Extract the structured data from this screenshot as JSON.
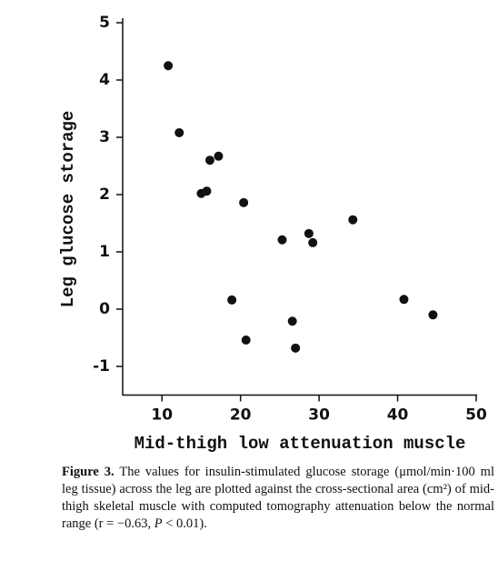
{
  "chart_data": {
    "type": "scatter",
    "x_label": "Mid-thigh low attenuation muscle",
    "y_label": "Leg glucose storage",
    "x": [
      10.8,
      12.2,
      16.1,
      17.2,
      15.0,
      15.7,
      20.4,
      25.3,
      28.7,
      29.2,
      34.3,
      18.9,
      40.8,
      44.5,
      26.6,
      20.7,
      27.0
    ],
    "values": [
      4.25,
      3.08,
      2.6,
      2.67,
      2.02,
      2.06,
      1.86,
      1.21,
      1.32,
      1.16,
      1.56,
      0.16,
      0.17,
      -0.1,
      -0.21,
      -0.54,
      -0.68
    ],
    "color": "#111111",
    "xlim": [
      5,
      50
    ],
    "ylim": [
      -1.5,
      5
    ],
    "xticks": [
      10,
      20,
      30,
      40,
      50
    ],
    "yticks": [
      -1,
      0,
      1,
      2,
      3,
      4,
      5
    ]
  },
  "caption": {
    "label": "Figure 3.",
    "text": "The values for insulin-stimulated glucose storage (μmol/min·100 ml leg tissue) across the leg are plotted against the cross-sectional area (cm²) of mid-thigh skeletal muscle with computed tomography attenuation below the normal range (r = −0.63,",
    "italic": "P",
    "tail": "< 0.01)."
  }
}
